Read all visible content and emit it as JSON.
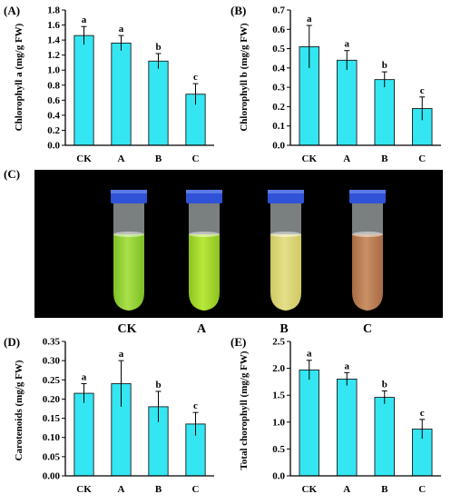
{
  "colors": {
    "bar": "#33E6F2",
    "bar_stroke": "#1a1a1a",
    "photo_bg": "#000000",
    "cap": "#2f52d6",
    "tube_glass": "#dfe8e8"
  },
  "chart_data": [
    {
      "type": "bar",
      "panel": "(A)",
      "ylabel": "Chlorophyll a (mg/g FW)",
      "categories": [
        "CK",
        "A",
        "B",
        "C"
      ],
      "values": [
        1.46,
        1.36,
        1.12,
        0.68
      ],
      "errors": [
        0.12,
        0.1,
        0.1,
        0.14
      ],
      "significance": [
        "a",
        "a",
        "b",
        "c"
      ],
      "ylim": [
        0,
        1.8
      ],
      "ticks": [
        "0.0",
        "0.2",
        "0.4",
        "0.6",
        "0.8",
        "1.0",
        "1.2",
        "1.4",
        "1.6",
        "1.8"
      ]
    },
    {
      "type": "bar",
      "panel": "(B)",
      "ylabel": "Chlorophyll b (mg/g FW)",
      "categories": [
        "CK",
        "A",
        "B",
        "C"
      ],
      "values": [
        0.51,
        0.44,
        0.34,
        0.19
      ],
      "errors": [
        0.11,
        0.05,
        0.04,
        0.06
      ],
      "significance": [
        "a",
        "a",
        "b",
        "c"
      ],
      "ylim": [
        0,
        0.7
      ],
      "ticks": [
        "0.0",
        "0.1",
        "0.2",
        "0.3",
        "0.4",
        "0.5",
        "0.6",
        "0.7"
      ]
    },
    {
      "type": "bar",
      "panel": "(D)",
      "ylabel": "Carotenoids (mg/g FW)",
      "categories": [
        "CK",
        "A",
        "B",
        "C"
      ],
      "values": [
        0.215,
        0.24,
        0.18,
        0.135
      ],
      "errors": [
        0.025,
        0.06,
        0.04,
        0.03
      ],
      "significance": [
        "a",
        "a",
        "b",
        "c"
      ],
      "ylim": [
        0,
        0.35
      ],
      "ticks": [
        "0.00",
        "0.05",
        "0.10",
        "0.15",
        "0.20",
        "0.25",
        "0.30",
        "0.35"
      ]
    },
    {
      "type": "bar",
      "panel": "(E)",
      "ylabel": "Total chorophyll (mg/g FW)",
      "categories": [
        "CK",
        "A",
        "B",
        "C"
      ],
      "values": [
        1.97,
        1.8,
        1.46,
        0.87
      ],
      "errors": [
        0.18,
        0.12,
        0.12,
        0.18
      ],
      "significance": [
        "a",
        "a",
        "b",
        "c"
      ],
      "ylim": [
        0,
        2.5
      ],
      "ticks": [
        "0.0",
        "0.5",
        "1.0",
        "1.5",
        "2.0",
        "2.5"
      ]
    }
  ],
  "photo": {
    "panel": "(C)",
    "tubes": [
      {
        "label": "CK",
        "liquid": "#a9e04a",
        "liquid_dark": "#7dbf24"
      },
      {
        "label": "A",
        "liquid": "#b8e83a",
        "liquid_dark": "#8cc320"
      },
      {
        "label": "B",
        "liquid": "#e4e08a",
        "liquid_dark": "#cfc862"
      },
      {
        "label": "C",
        "liquid": "#c99065",
        "liquid_dark": "#a86a43"
      }
    ]
  }
}
